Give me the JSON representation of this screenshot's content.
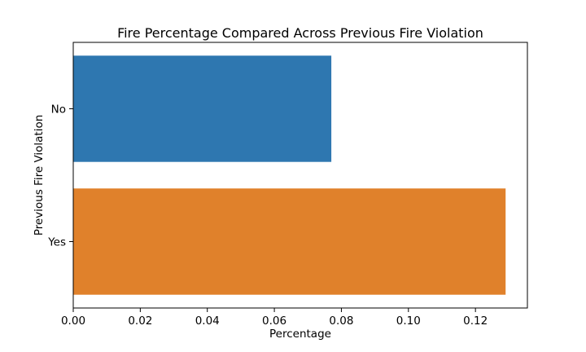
{
  "chart_data": {
    "type": "bar",
    "orientation": "horizontal",
    "title": "Fire Percentage Compared Across Previous Fire Violation",
    "xlabel": "Percentage",
    "ylabel": "Previous Fire Violation",
    "categories": [
      "No",
      "Yes"
    ],
    "values": [
      0.077,
      0.129
    ],
    "colors": [
      "#2e77b0",
      "#e0812b"
    ],
    "xlim": [
      0,
      0.1355
    ],
    "xticks": [
      "0.00",
      "0.02",
      "0.04",
      "0.06",
      "0.08",
      "0.10",
      "0.12"
    ],
    "grid": false,
    "legend": "none"
  }
}
